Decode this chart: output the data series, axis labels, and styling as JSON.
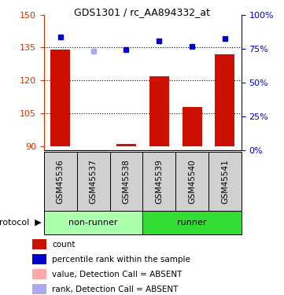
{
  "title": "GDS1301 / rc_AA894332_at",
  "samples": [
    "GSM45536",
    "GSM45537",
    "GSM45538",
    "GSM45539",
    "GSM45540",
    "GSM45541"
  ],
  "bar_values": [
    134,
    90,
    91,
    122,
    108,
    132
  ],
  "bar_bottom": 90,
  "blue_squares": [
    140,
    null,
    134,
    138,
    135.5,
    139
  ],
  "pink_squares": [
    null,
    133.5,
    null,
    null,
    null,
    null
  ],
  "lavender_squares": [
    null,
    133.5,
    null,
    null,
    null,
    null
  ],
  "ylim_left": [
    88,
    150
  ],
  "yticks_left": [
    90,
    105,
    120,
    135,
    150
  ],
  "ylim_right": [
    0,
    100
  ],
  "yticks_right": [
    0,
    25,
    50,
    75,
    100
  ],
  "right_tick_labels": [
    "0%",
    "25%",
    "50%",
    "75%",
    "100%"
  ],
  "bar_color": "#cc1100",
  "blue_color": "#0000cc",
  "pink_color": "#ffaaaa",
  "lavender_color": "#aaaaee",
  "nonrunner_color": "#aaffaa",
  "runner_color": "#33dd33",
  "left_axis_color": "#cc3300",
  "right_axis_color": "#0000cc",
  "label_bg_color": "#d0d0d0",
  "bar_width": 0.6,
  "grid_yticks": [
    105,
    120,
    135
  ],
  "legend_items": [
    {
      "color": "#cc1100",
      "label": "count"
    },
    {
      "color": "#0000cc",
      "label": "percentile rank within the sample"
    },
    {
      "color": "#ffaaaa",
      "label": "value, Detection Call = ABSENT"
    },
    {
      "color": "#aaaaee",
      "label": "rank, Detection Call = ABSENT"
    }
  ]
}
